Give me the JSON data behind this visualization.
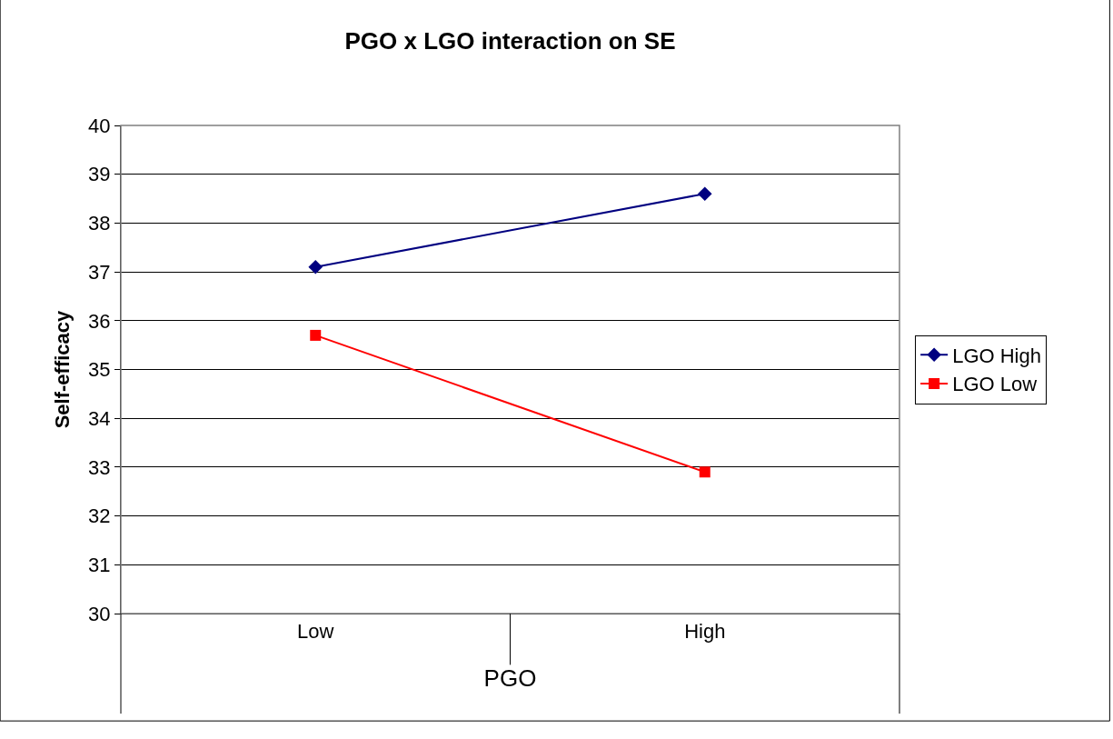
{
  "chart_data": {
    "type": "line",
    "title": "PGO x LGO interaction on SE",
    "xlabel": "PGO",
    "ylabel": "Self-efficacy",
    "categories": [
      "Low",
      "High"
    ],
    "series": [
      {
        "name": "LGO High",
        "color": "#000080",
        "values": [
          37.1,
          38.6
        ],
        "marker": "diamond"
      },
      {
        "name": "LGO Low",
        "color": "#ff0000",
        "values": [
          35.7,
          32.9
        ],
        "marker": "square"
      }
    ],
    "ylim": [
      30,
      40
    ],
    "yticks": [
      30,
      31,
      32,
      33,
      34,
      35,
      36,
      37,
      38,
      39,
      40
    ],
    "grid": "y",
    "legend": "right",
    "line_style": "solid"
  }
}
